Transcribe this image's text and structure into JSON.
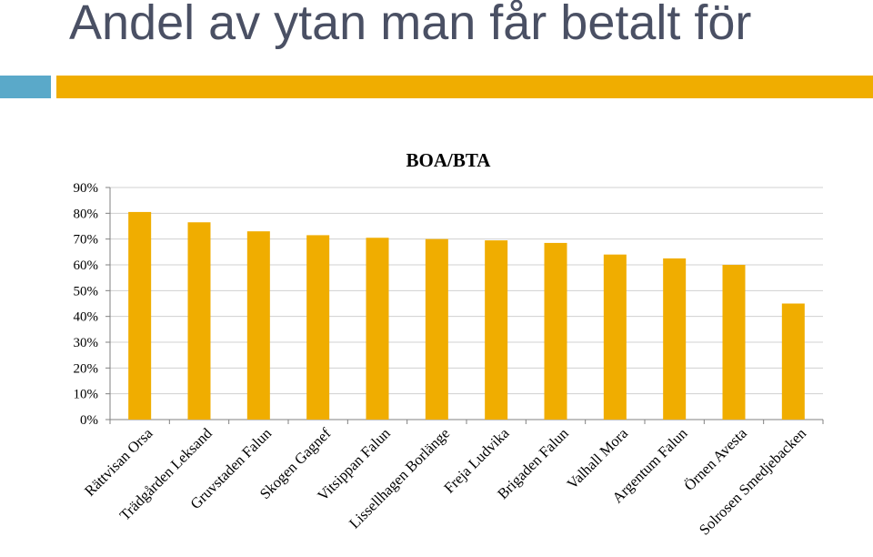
{
  "slide": {
    "title": "Andel av ytan man får betalt för"
  },
  "colors": {
    "title_text": "#4a5064",
    "accent_teal": "#5aa9c9",
    "accent_gold": "#f0ad00",
    "bar": "#f0ad00",
    "gridline": "#d0d0d0"
  },
  "chart_data": {
    "type": "bar",
    "title": "BOA/BTA",
    "xlabel": "",
    "ylabel": "",
    "ylim": [
      0,
      0.9
    ],
    "yticks": [
      0,
      0.1,
      0.2,
      0.3,
      0.4,
      0.5,
      0.6,
      0.7,
      0.8,
      0.9
    ],
    "ytick_labels": [
      "0%",
      "10%",
      "20%",
      "30%",
      "40%",
      "50%",
      "60%",
      "70%",
      "80%",
      "90%"
    ],
    "grid": true,
    "legend": "none",
    "categories": [
      "Rättvisan Orsa",
      "Trädgården Leksand",
      "Gruvstaden Falun",
      "Skogen Gagnef",
      "Vitsippan Falun",
      "Lissellhagen Borlänge",
      "Freja Ludvika",
      "Brigaden Falun",
      "Valhall Mora",
      "Argentum Falun",
      "Örnen Avesta",
      "Solrosen Smedjebacken"
    ],
    "values": [
      0.805,
      0.765,
      0.73,
      0.715,
      0.705,
      0.7,
      0.695,
      0.685,
      0.64,
      0.625,
      0.6,
      0.45
    ]
  }
}
